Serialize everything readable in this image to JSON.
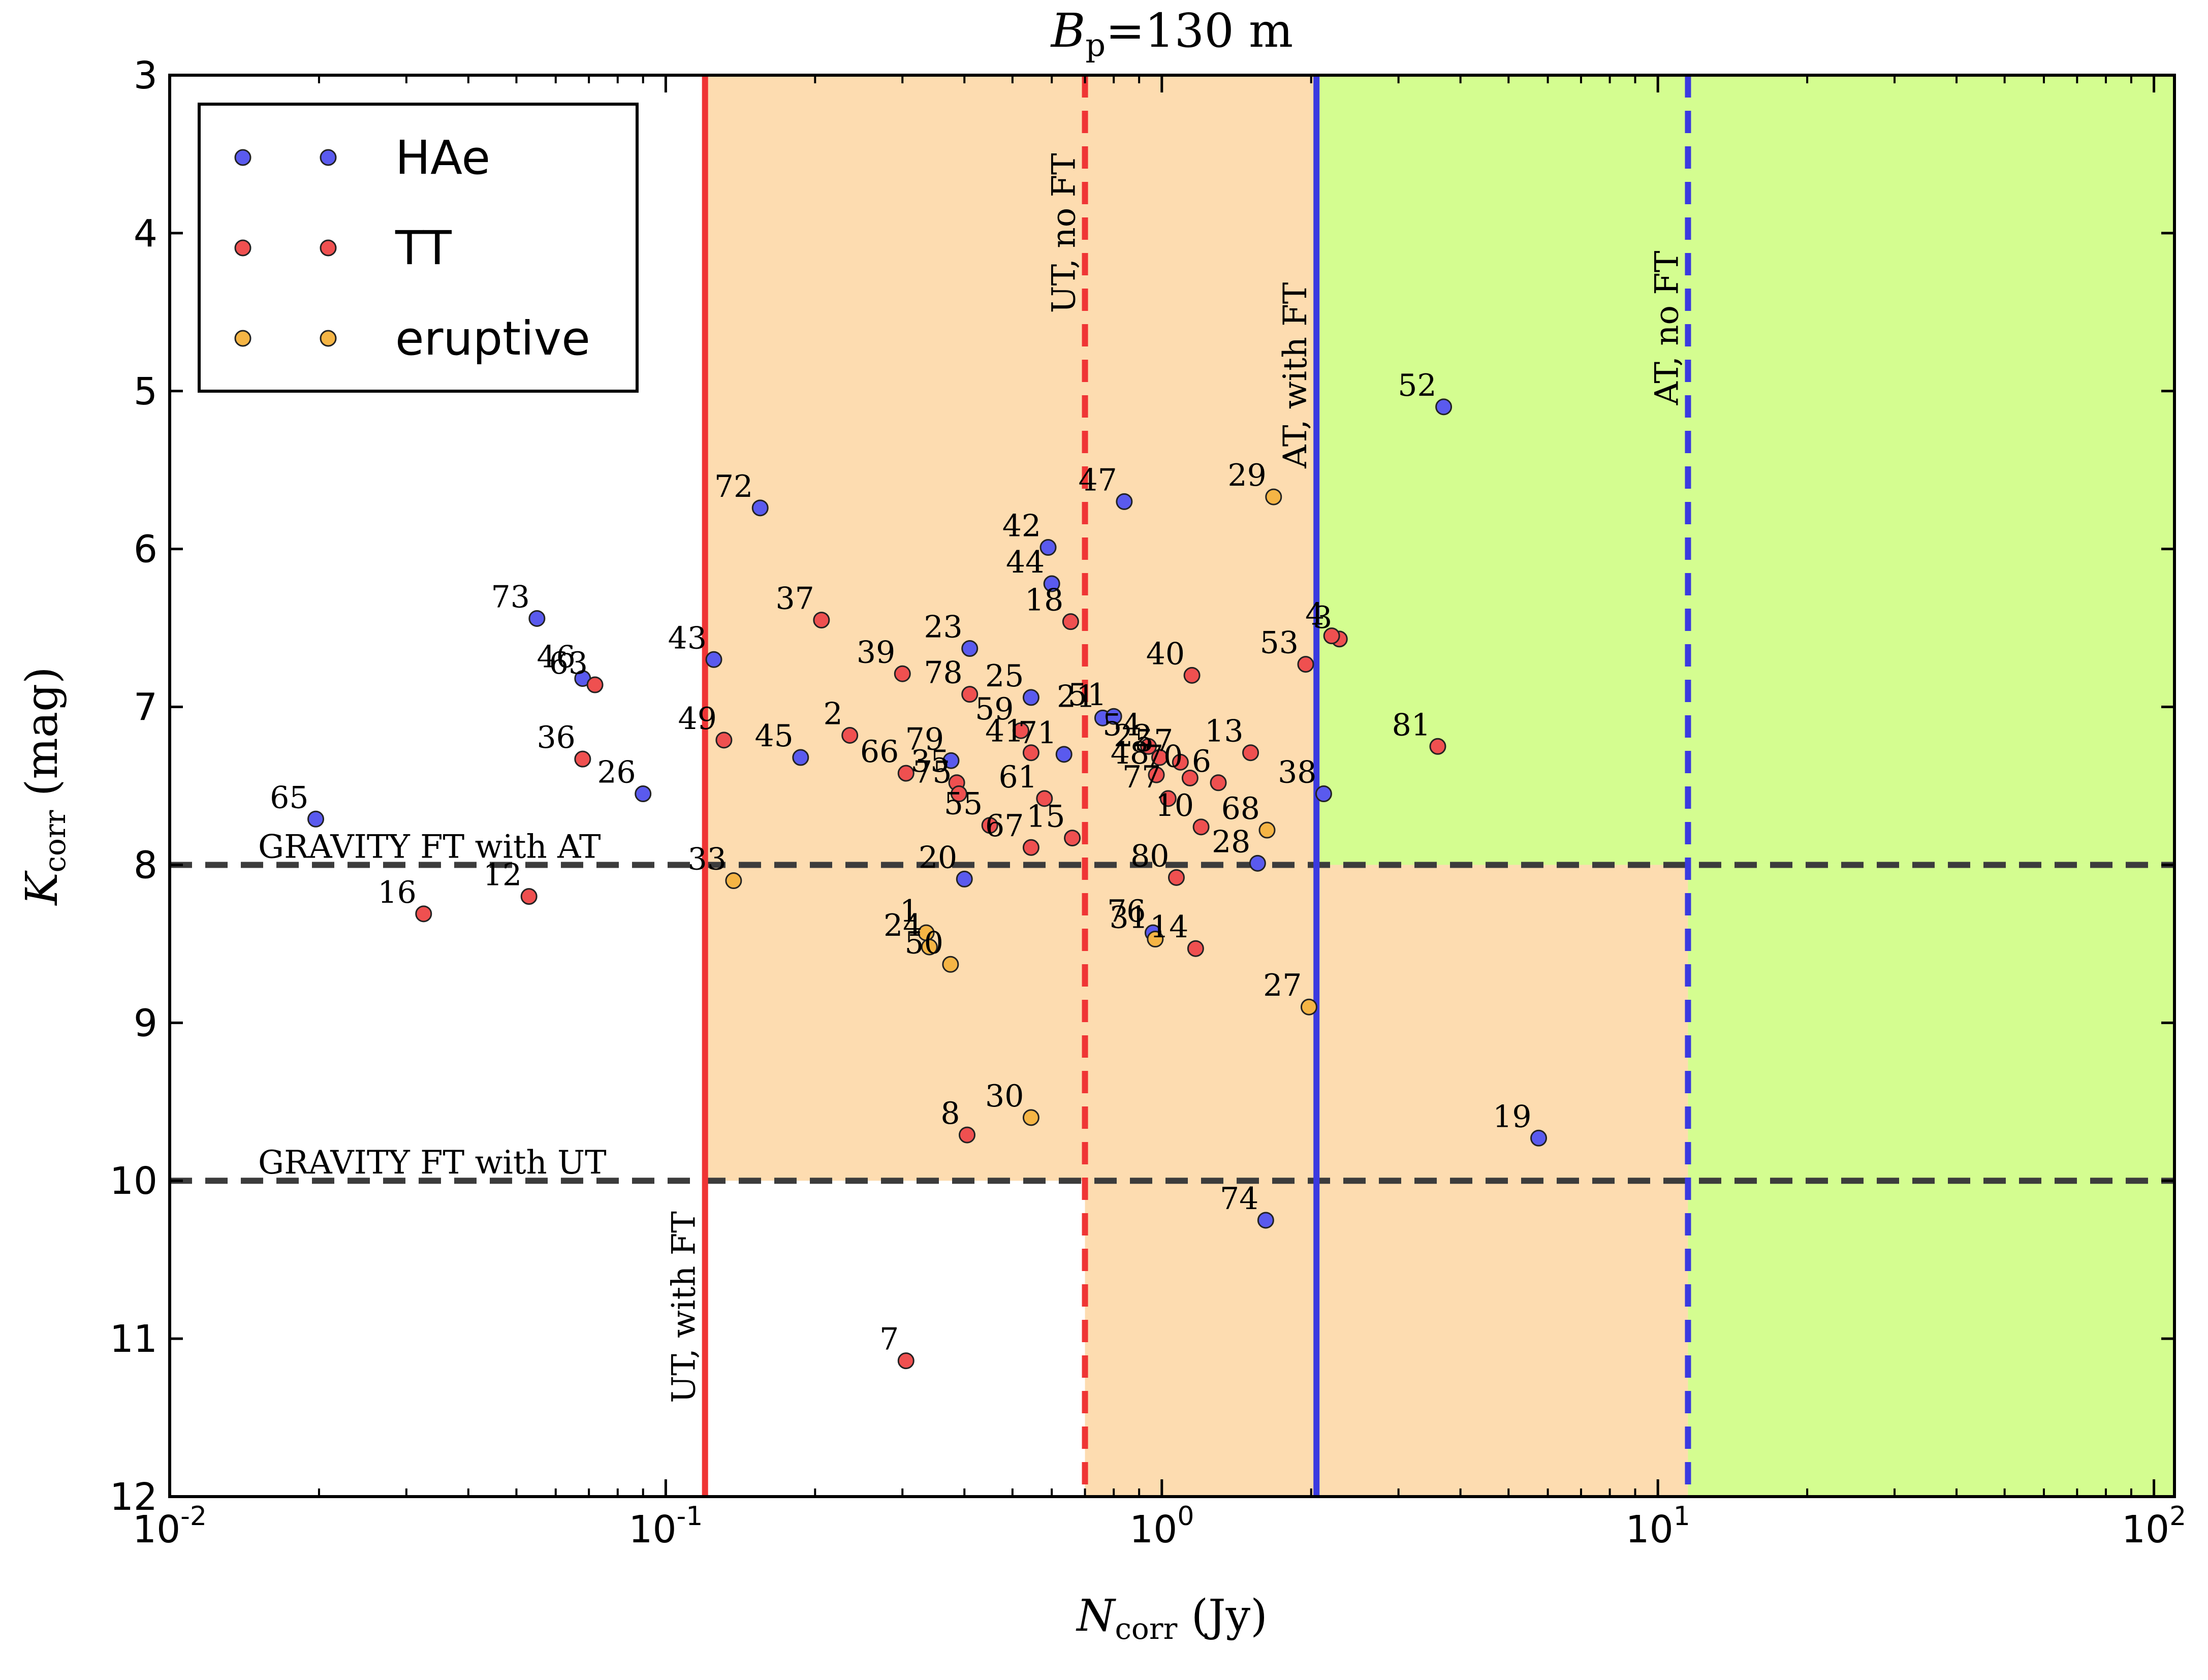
{
  "chart_data": {
    "type": "scatter",
    "title": "B_p =130 m",
    "title_parts": {
      "main": "B",
      "sub": "p",
      "rest": "=130 m"
    },
    "xlabel": "N_corr (Jy)",
    "xlabel_parts": {
      "main": "N",
      "sub": "corr",
      "rest": " (Jy)"
    },
    "ylabel": "K_corr (mag)",
    "ylabel_parts": {
      "main": "K",
      "sub": "corr",
      "rest": " (mag)"
    },
    "x_scale": "log",
    "xlim": [
      0.01,
      110
    ],
    "ylim": [
      12,
      3
    ],
    "y_inverted": true,
    "x_ticks": [
      {
        "value": 0.01,
        "base": "10",
        "exp": "-2"
      },
      {
        "value": 0.1,
        "base": "10",
        "exp": "-1"
      },
      {
        "value": 1,
        "base": "10",
        "exp": "0"
      },
      {
        "value": 10,
        "base": "10",
        "exp": "1"
      },
      {
        "value": 100,
        "base": "10",
        "exp": "2"
      }
    ],
    "y_ticks": [
      "3",
      "4",
      "5",
      "6",
      "7",
      "8",
      "9",
      "10",
      "11",
      "12"
    ],
    "grid": false,
    "legend": {
      "position": "top-left",
      "entries": [
        {
          "label": "HAe",
          "color": "#5a5aee"
        },
        {
          "label": "TT",
          "color": "#ef5050"
        },
        {
          "label": "eruptive",
          "color": "#f5b545"
        }
      ]
    },
    "colors": {
      "HAe": "#5a5aee",
      "TT": "#ef5050",
      "eruptive": "#f5b545",
      "region_orange": "#fddcb0",
      "region_green": "#d4fd90",
      "ut_line": "#ef3535",
      "at_line": "#3a3ae0",
      "gravity_line": "#3c3c3c"
    },
    "regions": [
      {
        "name": "orange-upper",
        "x": [
          0.12,
          2.05
        ],
        "y": [
          3,
          10
        ],
        "color": "#fddcb0"
      },
      {
        "name": "orange-lower",
        "x": [
          0.7,
          11.5
        ],
        "y": [
          8,
          12
        ],
        "color": "#fddcb0"
      },
      {
        "name": "green-upper",
        "x": [
          2.05,
          110
        ],
        "y": [
          3,
          8
        ],
        "color": "#d4fd90"
      },
      {
        "name": "green-right",
        "x": [
          11.5,
          110
        ],
        "y": [
          8,
          12
        ],
        "color": "#d4fd90"
      }
    ],
    "vertical_lines": [
      {
        "label": "UT, with FT",
        "x": 0.12,
        "color": "#ef3535",
        "style": "solid",
        "label_y": 10.8
      },
      {
        "label": "UT, no FT",
        "x": 0.7,
        "color": "#ef3535",
        "style": "dashed",
        "label_y": 4.0
      },
      {
        "label": "AT, with FT",
        "x": 2.05,
        "color": "#3a3ae0",
        "style": "solid",
        "label_y": 4.9
      },
      {
        "label": "AT, no FT",
        "x": 11.5,
        "color": "#3a3ae0",
        "style": "dashed",
        "label_y": 4.6
      }
    ],
    "horizontal_lines": [
      {
        "label": "GRAVITY FT with AT",
        "y": 8,
        "color": "#3c3c3c",
        "style": "dashed"
      },
      {
        "label": "GRAVITY FT with UT",
        "y": 10,
        "color": "#3c3c3c",
        "style": "dashed"
      }
    ],
    "series": [
      {
        "name": "HAe",
        "color": "#5a5aee",
        "points": [
          {
            "label": "52",
            "x": 3.7,
            "y": 5.1
          },
          {
            "label": "72",
            "x": 0.155,
            "y": 5.74
          },
          {
            "label": "47",
            "x": 0.84,
            "y": 5.7
          },
          {
            "label": "42",
            "x": 0.59,
            "y": 5.99
          },
          {
            "label": "44",
            "x": 0.6,
            "y": 6.22
          },
          {
            "label": "73",
            "x": 0.055,
            "y": 6.44
          },
          {
            "label": "23",
            "x": 0.41,
            "y": 6.63
          },
          {
            "label": "43",
            "x": 0.125,
            "y": 6.7
          },
          {
            "label": "46",
            "x": 0.068,
            "y": 6.82
          },
          {
            "label": "25",
            "x": 0.545,
            "y": 6.94
          },
          {
            "label": "21",
            "x": 0.76,
            "y": 7.07
          },
          {
            "label": "51",
            "x": 0.8,
            "y": 7.06
          },
          {
            "label": "71",
            "x": 0.635,
            "y": 7.3
          },
          {
            "label": "45",
            "x": 0.187,
            "y": 7.32
          },
          {
            "label": "79",
            "x": 0.376,
            "y": 7.34
          },
          {
            "label": "26",
            "x": 0.09,
            "y": 7.55
          },
          {
            "label": "65",
            "x": 0.0197,
            "y": 7.71
          },
          {
            "label": "28",
            "x": 1.56,
            "y": 7.99
          },
          {
            "label": "20",
            "x": 0.4,
            "y": 8.09
          },
          {
            "label": "38",
            "x": 2.12,
            "y": 7.55
          },
          {
            "label": "19",
            "x": 5.75,
            "y": 9.73
          },
          {
            "label": "74",
            "x": 1.62,
            "y": 10.25
          },
          {
            "label": "76",
            "x": 0.96,
            "y": 8.43
          }
        ]
      },
      {
        "name": "TT",
        "color": "#ef5050",
        "points": [
          {
            "label": "37",
            "x": 0.206,
            "y": 6.45
          },
          {
            "label": "18",
            "x": 0.655,
            "y": 6.46
          },
          {
            "label": "3",
            "x": 2.28,
            "y": 6.57
          },
          {
            "label": "4",
            "x": 2.2,
            "y": 6.55
          },
          {
            "label": "53",
            "x": 1.95,
            "y": 6.73
          },
          {
            "label": "63",
            "x": 0.072,
            "y": 6.86
          },
          {
            "label": "39",
            "x": 0.3,
            "y": 6.79
          },
          {
            "label": "40",
            "x": 1.15,
            "y": 6.8
          },
          {
            "label": "78",
            "x": 0.41,
            "y": 6.92
          },
          {
            "label": "2",
            "x": 0.235,
            "y": 7.18
          },
          {
            "label": "49",
            "x": 0.131,
            "y": 7.21
          },
          {
            "label": "59",
            "x": 0.52,
            "y": 7.15
          },
          {
            "label": "41",
            "x": 0.545,
            "y": 7.29
          },
          {
            "label": "54",
            "x": 0.94,
            "y": 7.25
          },
          {
            "label": "22",
            "x": 0.99,
            "y": 7.32
          },
          {
            "label": "57",
            "x": 1.09,
            "y": 7.35
          },
          {
            "label": "13",
            "x": 1.51,
            "y": 7.29
          },
          {
            "label": "81",
            "x": 3.6,
            "y": 7.25
          },
          {
            "label": "36",
            "x": 0.068,
            "y": 7.33
          },
          {
            "label": "66",
            "x": 0.305,
            "y": 7.42
          },
          {
            "label": "35",
            "x": 0.386,
            "y": 7.48
          },
          {
            "label": "48",
            "x": 0.975,
            "y": 7.43
          },
          {
            "label": "70",
            "x": 1.14,
            "y": 7.45
          },
          {
            "label": "6",
            "x": 1.3,
            "y": 7.48
          },
          {
            "label": "75",
            "x": 0.39,
            "y": 7.55
          },
          {
            "label": "61",
            "x": 0.58,
            "y": 7.58
          },
          {
            "label": "77",
            "x": 1.03,
            "y": 7.58
          },
          {
            "label": "55",
            "x": 0.45,
            "y": 7.75
          },
          {
            "label": "10",
            "x": 1.2,
            "y": 7.76
          },
          {
            "label": "67",
            "x": 0.545,
            "y": 7.89
          },
          {
            "label": "15",
            "x": 0.66,
            "y": 7.83
          },
          {
            "label": "16",
            "x": 0.0325,
            "y": 8.31
          },
          {
            "label": "12",
            "x": 0.053,
            "y": 8.2
          },
          {
            "label": "80",
            "x": 1.07,
            "y": 8.08
          },
          {
            "label": "14",
            "x": 1.17,
            "y": 8.53
          },
          {
            "label": "8",
            "x": 0.405,
            "y": 9.71
          },
          {
            "label": "7",
            "x": 0.305,
            "y": 11.14
          }
        ]
      },
      {
        "name": "eruptive",
        "color": "#f5b545",
        "points": [
          {
            "label": "29",
            "x": 1.68,
            "y": 5.67
          },
          {
            "label": "68",
            "x": 1.63,
            "y": 7.78
          },
          {
            "label": "33",
            "x": 0.137,
            "y": 8.1
          },
          {
            "label": "1",
            "x": 0.335,
            "y": 8.43
          },
          {
            "label": "24",
            "x": 0.34,
            "y": 8.52
          },
          {
            "label": "50",
            "x": 0.375,
            "y": 8.63
          },
          {
            "label": "31",
            "x": 0.97,
            "y": 8.47
          },
          {
            "label": "27",
            "x": 1.98,
            "y": 8.9
          },
          {
            "label": "30",
            "x": 0.545,
            "y": 9.6
          }
        ]
      }
    ]
  }
}
